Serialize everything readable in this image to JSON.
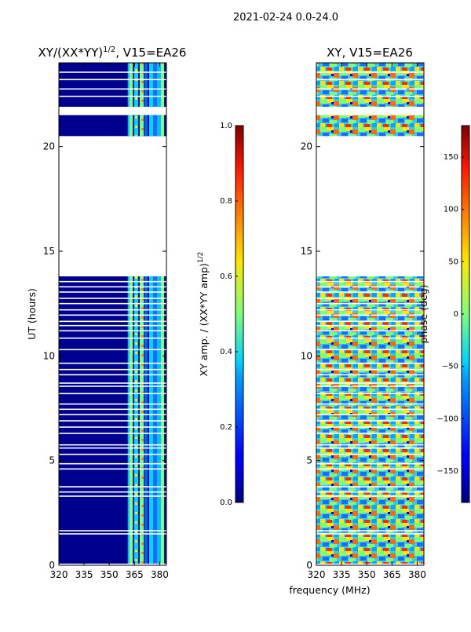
{
  "suptitle": "2021-02-24 0.0-24.0",
  "xlabel_shared": "frequency (MHz)",
  "chart_data": [
    {
      "type": "heatmap",
      "title": "XY/(XX*YY)^1/2, V15=EA26",
      "ylabel": "UT (hours)",
      "x_ticks": [
        320,
        335,
        350,
        365,
        380
      ],
      "y_ticks": [
        0,
        5,
        10,
        15,
        20
      ],
      "xlim": [
        320,
        384
      ],
      "ylim": [
        0,
        24
      ],
      "colormap": "jet",
      "data_bands_hours": [
        [
          0,
          13.8
        ],
        [
          20.5,
          21.5
        ],
        [
          21.9,
          24
        ]
      ],
      "bright_freq_band_mhz": [
        361,
        384
      ],
      "colorbar": {
        "label": "XY amp. / (XX*YY amp)^1/2",
        "range": [
          0.0,
          1.0
        ],
        "ticks": [
          "0.0",
          "0.2",
          "0.4",
          "0.6",
          "0.8",
          "1.0"
        ]
      }
    },
    {
      "type": "heatmap",
      "title": "XY, V15=EA26",
      "ylabel": "",
      "x_ticks": [
        320,
        335,
        350,
        365,
        380
      ],
      "y_ticks": [
        0,
        5,
        10,
        15,
        20
      ],
      "xlim": [
        320,
        384
      ],
      "ylim": [
        0,
        24
      ],
      "colormap": "jet",
      "data_bands_hours": [
        [
          0,
          13.8
        ],
        [
          20.5,
          21.5
        ],
        [
          21.9,
          24
        ]
      ],
      "colorbar": {
        "label": "phase (deg)",
        "range": [
          -180,
          180
        ],
        "ticks": [
          "−150",
          "−100",
          "−50",
          "0",
          "50",
          "100",
          "150"
        ]
      }
    }
  ]
}
